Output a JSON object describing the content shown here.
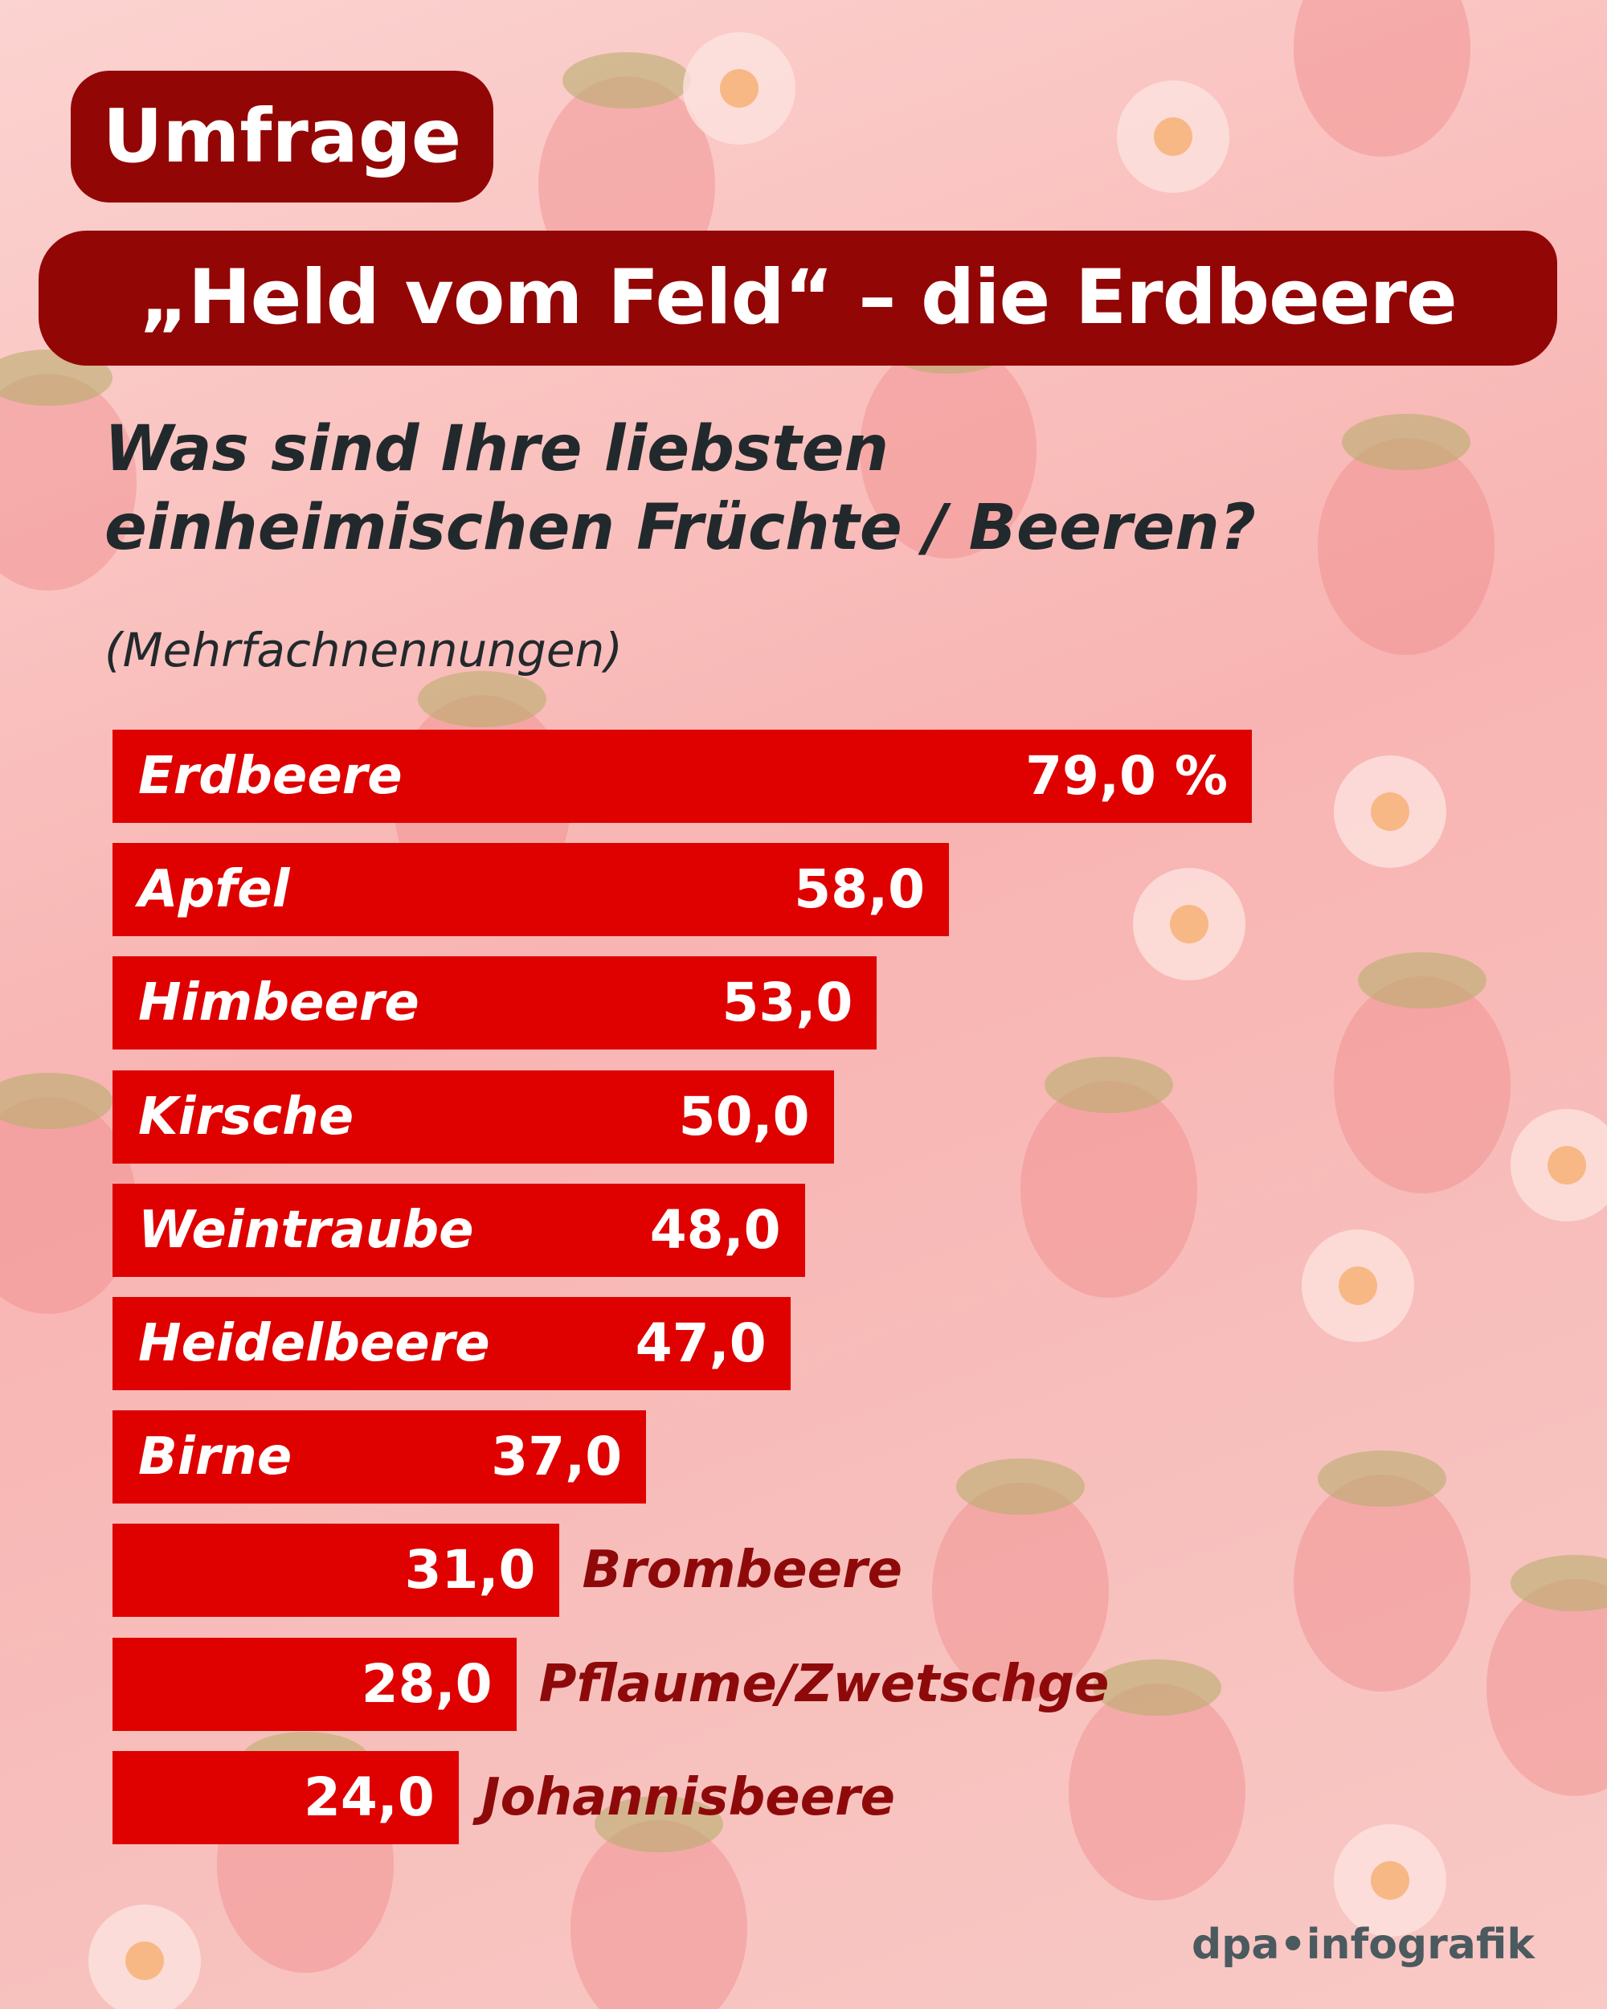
{
  "badge": "Umfrage",
  "title": "„Held vom Feld“ – die Erdbeere",
  "question_line1": "Was sind Ihre liebsten",
  "question_line2": "einheimischen Früchte / Beeren?",
  "note": "(Mehrfachnennungen)",
  "logo": "dpa•infografik",
  "colors": {
    "bar": "#df0000",
    "banner": "#930606",
    "outside_label": "#8e0a0a"
  },
  "chart_data": {
    "type": "bar",
    "orientation": "horizontal",
    "unit": "%",
    "categories": [
      "Erdbeere",
      "Apfel",
      "Himbeere",
      "Kirsche",
      "Weintraube",
      "Heidelbeere",
      "Birne",
      "Brombeere",
      "Pflaume/Zwetschge",
      "Johannisbeere"
    ],
    "values": [
      79.0,
      58.0,
      53.0,
      50.0,
      48.0,
      47.0,
      37.0,
      31.0,
      28.0,
      24.0
    ],
    "value_labels": [
      "79,0 %",
      "58,0",
      "53,0",
      "50,0",
      "48,0",
      "47,0",
      "37,0",
      "31,0",
      "28,0",
      "24,0"
    ]
  }
}
